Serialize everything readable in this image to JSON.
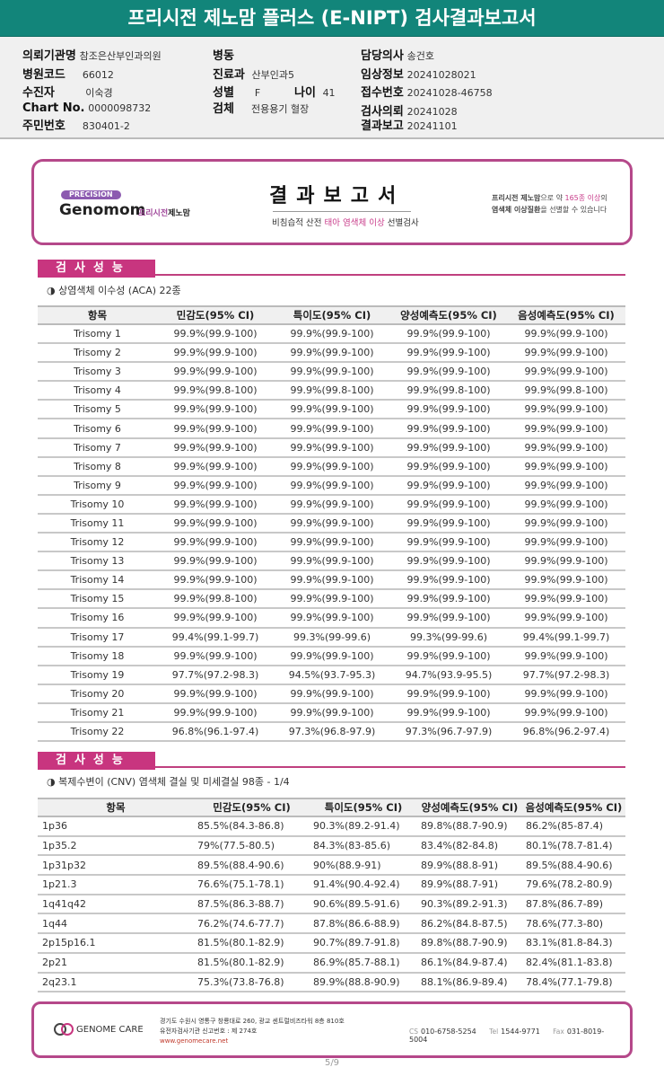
{
  "title": "프리시전 제노맘 플러스 (E-NIPT) 검사결과보고서",
  "info": {
    "institution_label": "의뢰기관명",
    "institution": "참조은산부인과의원",
    "hospital_code_label": "병원코드",
    "hospital_code": "66012",
    "patient_label": "수진자",
    "patient": "이숙경",
    "chart_label": "Chart No.",
    "chart": "0000098732",
    "resident_label": "주민번호",
    "resident": "830401-2",
    "ward_label": "병동",
    "ward": "",
    "dept_label": "진료과",
    "dept": "산부인과5",
    "sex_label": "성별",
    "sex": "F",
    "age_label": "나이",
    "age": "41",
    "specimen_label": "검체",
    "specimen": "전용용기 혈장",
    "doctor_label": "담당의사",
    "doctor": "송건호",
    "clinical_label": "임상정보",
    "clinical": "20241028021",
    "receipt_label": "접수번호",
    "receipt": "20241028-46758",
    "request_label": "검사의뢰",
    "request": "20241028",
    "report_label": "결과보고",
    "report": "20241101"
  },
  "header": {
    "precision": "PRECISION",
    "brand": "Genomom",
    "brand_kr1": "프리시전",
    "brand_kr2": "제노맘",
    "title": "결과보고서",
    "subtitle_pre": "비침습적 산전",
    "subtitle_hl": "태아 염색체 이상",
    "subtitle_post": "선별검사",
    "right_l1a": "프리시전 제노맘",
    "right_l1b": "으로 약",
    "right_l1c": "165종 이상",
    "right_l1d": "의",
    "right_l2a": "염색체 이상질환",
    "right_l2b": "을 선별할 수 있습니다"
  },
  "section1": {
    "label": "검사성능",
    "subtitle": "◑ 상염색체 이수성 (ACA) 22종"
  },
  "columns": [
    "항목",
    "민감도(95% CI)",
    "특이도(95% CI)",
    "양성예측도(95% CI)",
    "음성예측도(95% CI)"
  ],
  "table1": [
    [
      "Trisomy 1",
      "99.9%(99.9-100)",
      "99.9%(99.9-100)",
      "99.9%(99.9-100)",
      "99.9%(99.9-100)"
    ],
    [
      "Trisomy 2",
      "99.9%(99.9-100)",
      "99.9%(99.9-100)",
      "99.9%(99.9-100)",
      "99.9%(99.9-100)"
    ],
    [
      "Trisomy 3",
      "99.9%(99.9-100)",
      "99.9%(99.9-100)",
      "99.9%(99.9-100)",
      "99.9%(99.9-100)"
    ],
    [
      "Trisomy 4",
      "99.9%(99.8-100)",
      "99.9%(99.8-100)",
      "99.9%(99.8-100)",
      "99.9%(99.8-100)"
    ],
    [
      "Trisomy 5",
      "99.9%(99.9-100)",
      "99.9%(99.9-100)",
      "99.9%(99.9-100)",
      "99.9%(99.9-100)"
    ],
    [
      "Trisomy 6",
      "99.9%(99.9-100)",
      "99.9%(99.9-100)",
      "99.9%(99.9-100)",
      "99.9%(99.9-100)"
    ],
    [
      "Trisomy 7",
      "99.9%(99.9-100)",
      "99.9%(99.9-100)",
      "99.9%(99.9-100)",
      "99.9%(99.9-100)"
    ],
    [
      "Trisomy 8",
      "99.9%(99.9-100)",
      "99.9%(99.9-100)",
      "99.9%(99.9-100)",
      "99.9%(99.9-100)"
    ],
    [
      "Trisomy 9",
      "99.9%(99.9-100)",
      "99.9%(99.9-100)",
      "99.9%(99.9-100)",
      "99.9%(99.9-100)"
    ],
    [
      "Trisomy 10",
      "99.9%(99.9-100)",
      "99.9%(99.9-100)",
      "99.9%(99.9-100)",
      "99.9%(99.9-100)"
    ],
    [
      "Trisomy 11",
      "99.9%(99.9-100)",
      "99.9%(99.9-100)",
      "99.9%(99.9-100)",
      "99.9%(99.9-100)"
    ],
    [
      "Trisomy 12",
      "99.9%(99.9-100)",
      "99.9%(99.9-100)",
      "99.9%(99.9-100)",
      "99.9%(99.9-100)"
    ],
    [
      "Trisomy 13",
      "99.9%(99.9-100)",
      "99.9%(99.9-100)",
      "99.9%(99.9-100)",
      "99.9%(99.9-100)"
    ],
    [
      "Trisomy 14",
      "99.9%(99.9-100)",
      "99.9%(99.9-100)",
      "99.9%(99.9-100)",
      "99.9%(99.9-100)"
    ],
    [
      "Trisomy 15",
      "99.9%(99.8-100)",
      "99.9%(99.9-100)",
      "99.9%(99.9-100)",
      "99.9%(99.9-100)"
    ],
    [
      "Trisomy 16",
      "99.9%(99.9-100)",
      "99.9%(99.9-100)",
      "99.9%(99.9-100)",
      "99.9%(99.9-100)"
    ],
    [
      "Trisomy 17",
      "99.4%(99.1-99.7)",
      "99.3%(99-99.6)",
      "99.3%(99-99.6)",
      "99.4%(99.1-99.7)"
    ],
    [
      "Trisomy 18",
      "99.9%(99.9-100)",
      "99.9%(99.9-100)",
      "99.9%(99.9-100)",
      "99.9%(99.9-100)"
    ],
    [
      "Trisomy 19",
      "97.7%(97.2-98.3)",
      "94.5%(93.7-95.3)",
      "94.7%(93.9-95.5)",
      "97.7%(97.2-98.3)"
    ],
    [
      "Trisomy 20",
      "99.9%(99.9-100)",
      "99.9%(99.9-100)",
      "99.9%(99.9-100)",
      "99.9%(99.9-100)"
    ],
    [
      "Trisomy 21",
      "99.9%(99.9-100)",
      "99.9%(99.9-100)",
      "99.9%(99.9-100)",
      "99.9%(99.9-100)"
    ],
    [
      "Trisomy 22",
      "96.8%(96.1-97.4)",
      "97.3%(96.8-97.9)",
      "97.3%(96.7-97.9)",
      "96.8%(96.2-97.4)"
    ]
  ],
  "section2": {
    "label": "검사성능",
    "subtitle": "◑ 복제수변이 (CNV) 염색체 결실 및 미세결실 98종 - 1/4"
  },
  "table2": [
    [
      "1p36",
      "85.5%(84.3-86.8)",
      "90.3%(89.2-91.4)",
      "89.8%(88.7-90.9)",
      "86.2%(85-87.4)"
    ],
    [
      "1p35.2",
      "79%(77.5-80.5)",
      "84.3%(83-85.6)",
      "83.4%(82-84.8)",
      "80.1%(78.7-81.4)"
    ],
    [
      "1p31p32",
      "89.5%(88.4-90.6)",
      "90%(88.9-91)",
      "89.9%(88.8-91)",
      "89.5%(88.4-90.6)"
    ],
    [
      "1p21.3",
      "76.6%(75.1-78.1)",
      "91.4%(90.4-92.4)",
      "89.9%(88.7-91)",
      "79.6%(78.2-80.9)"
    ],
    [
      "1q41q42",
      "87.5%(86.3-88.7)",
      "90.6%(89.5-91.6)",
      "90.3%(89.2-91.3)",
      "87.8%(86.7-89)"
    ],
    [
      "1q44",
      "76.2%(74.6-77.7)",
      "87.8%(86.6-88.9)",
      "86.2%(84.8-87.5)",
      "78.6%(77.3-80)"
    ],
    [
      "2p15p16.1",
      "81.5%(80.1-82.9)",
      "90.7%(89.7-91.8)",
      "89.8%(88.7-90.9)",
      "83.1%(81.8-84.3)"
    ],
    [
      "2p21",
      "81.5%(80.1-82.9)",
      "86.9%(85.7-88.1)",
      "86.1%(84.9-87.4)",
      "82.4%(81.1-83.8)"
    ],
    [
      "2q23.1",
      "75.3%(73.8-76.8)",
      "89.9%(88.8-90.9)",
      "88.1%(86.9-89.4)",
      "78.4%(77.1-79.8)"
    ]
  ],
  "footer": {
    "logo": "GENOME CARE",
    "address": "경기도 수원시 영통구 창룡대로 260, 광교 센트럴비즈타워 8층 810호",
    "license": "유전자검사기관 신고번호 : 제 274호",
    "url": "www.genomecare.net",
    "cs_label": "CS",
    "cs": "010-6758-5254",
    "tel_label": "Tel",
    "tel": "1544-9771",
    "fax_label": "Fax",
    "fax": "031-8019-5004"
  },
  "page": "5/9",
  "colors": {
    "title_bar": "#12857a",
    "accent": "#c8357f",
    "border": "#b5488a"
  }
}
